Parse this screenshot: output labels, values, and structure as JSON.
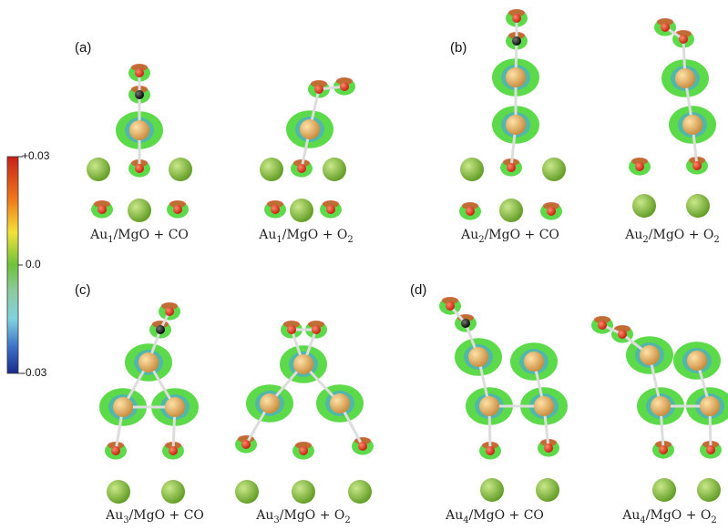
{
  "colorbar": {
    "ticks": [
      "+0.03",
      "0.0",
      "-0.03"
    ]
  },
  "panels": [
    {
      "label": "(a)",
      "captions": [
        [
          {
            "text": "Au"
          },
          {
            "sub": "1"
          },
          {
            "text": "/MgO + CO"
          }
        ],
        [
          {
            "text": "Au"
          },
          {
            "sub": "1"
          },
          {
            "text": "/MgO + O"
          },
          {
            "sub": "2"
          }
        ]
      ]
    },
    {
      "label": "(b)",
      "captions": [
        [
          {
            "text": "Au"
          },
          {
            "sub": "2"
          },
          {
            "text": "/MgO + CO"
          }
        ],
        [
          {
            "text": "Au"
          },
          {
            "sub": "2"
          },
          {
            "text": "/MgO + O"
          },
          {
            "sub": "2"
          }
        ]
      ]
    },
    {
      "label": "(c)",
      "captions": [
        [
          {
            "text": "Au"
          },
          {
            "sub": "3"
          },
          {
            "text": "/MgO + CO"
          }
        ],
        [
          {
            "text": "Au"
          },
          {
            "sub": "3"
          },
          {
            "text": "/MgO + O"
          },
          {
            "sub": "2"
          }
        ]
      ]
    },
    {
      "label": "(d)",
      "captions": [
        [
          {
            "text": "Au"
          },
          {
            "sub": "4"
          },
          {
            "text": "/MgO + CO"
          }
        ],
        [
          {
            "text": "Au"
          },
          {
            "sub": "4"
          },
          {
            "text": "/MgO + O"
          },
          {
            "sub": "2"
          }
        ]
      ]
    }
  ]
}
